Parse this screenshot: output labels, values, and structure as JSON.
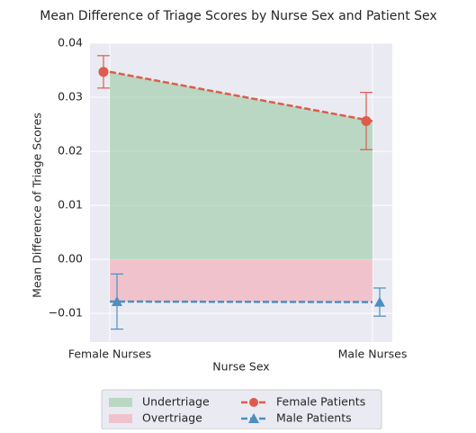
{
  "chart_data": {
    "type": "line",
    "title": "Mean Difference of Triage Scores by Nurse Sex and Patient Sex",
    "x_label": "Nurse Sex",
    "y_label": "Mean Difference of Triage Scores",
    "categories": [
      "Female Nurses",
      "Male Nurses"
    ],
    "series": [
      {
        "name": "Female Patients",
        "color": "#dd5c4c",
        "marker": "circle",
        "values": [
          0.0347,
          0.0256
        ],
        "errors": [
          0.003,
          0.0053
        ]
      },
      {
        "name": "Male Patients",
        "color": "#4c8fc0",
        "marker": "triangle",
        "values": [
          -0.0078,
          -0.0079
        ],
        "errors": [
          0.0051,
          0.0026
        ]
      }
    ],
    "areas": [
      {
        "name": "Undertriage",
        "color": "#8fc79a"
      },
      {
        "name": "Overtriage",
        "color": "#f4a3ad"
      }
    ],
    "ylim": [
      -0.0153,
      0.04
    ],
    "yticks": [
      {
        "value": 0.04,
        "label": "0.04"
      },
      {
        "value": 0.03,
        "label": "0.03"
      },
      {
        "value": 0.02,
        "label": "0.02"
      },
      {
        "value": 0.01,
        "label": "0.01"
      },
      {
        "value": 0,
        "label": "0.00"
      },
      {
        "value": -0.01,
        "label": "−0.01"
      }
    ],
    "grid": true
  }
}
